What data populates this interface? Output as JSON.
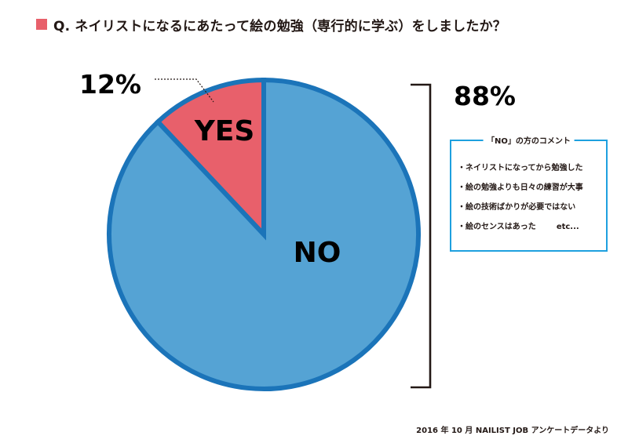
{
  "title": "Q. ネイリストになるにあたって絵の勉強（専行的に学ぶ）をしましたか？",
  "colors": {
    "title_marker": "#e8606b",
    "yes_fill": "#e8606b",
    "no_fill": "#55a3d4",
    "slice_border": "#1b74b9",
    "box_border": "#1ea0df",
    "text": "#231815"
  },
  "chart_data": {
    "type": "pie",
    "slices": [
      {
        "label": "YES",
        "value": 12,
        "pct_label": "12%",
        "color": "#e8606b"
      },
      {
        "label": "NO",
        "value": 88,
        "pct_label": "88%",
        "color": "#55a3d4"
      }
    ]
  },
  "comments": {
    "title": "「NO」の方のコメント",
    "items": [
      {
        "text": "・ネイリストになってから勉強した",
        "suffix": ""
      },
      {
        "text": "・絵の勉強よりも日々の練習が大事",
        "suffix": ""
      },
      {
        "text": "・絵の技術ばかりが必要ではない",
        "suffix": ""
      },
      {
        "text": "・絵のセンスはあった",
        "suffix": "etc..."
      }
    ]
  },
  "footnote": "2016 年 10 月 NAILIST JOB アンケートデータより"
}
